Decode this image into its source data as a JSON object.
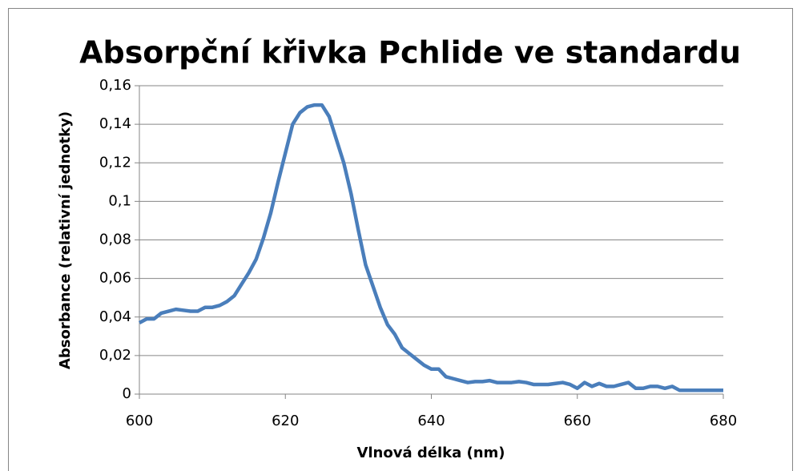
{
  "chart_data": {
    "type": "line",
    "title": "Absorpční křivka Pchlide ve standardu",
    "xlabel": "Vlnová délka (nm)",
    "ylabel": "Absorbance (relativní jednotky)",
    "x": [
      600,
      601,
      602,
      603,
      604,
      605,
      606,
      607,
      608,
      609,
      610,
      611,
      612,
      613,
      614,
      615,
      616,
      617,
      618,
      619,
      620,
      621,
      622,
      623,
      624,
      625,
      626,
      627,
      628,
      629,
      630,
      631,
      632,
      633,
      634,
      635,
      636,
      637,
      638,
      639,
      640,
      641,
      642,
      643,
      644,
      645,
      646,
      647,
      648,
      649,
      650,
      651,
      652,
      653,
      654,
      655,
      656,
      657,
      658,
      659,
      660,
      661,
      662,
      663,
      664,
      665,
      666,
      667,
      668,
      669,
      670,
      671,
      672,
      673,
      674,
      675,
      676,
      677,
      678,
      679,
      680
    ],
    "series": [
      {
        "name": "Pchlide",
        "color": "#4a7ebb",
        "values": [
          0.037,
          0.039,
          0.039,
          0.042,
          0.043,
          0.044,
          0.0435,
          0.043,
          0.043,
          0.045,
          0.045,
          0.046,
          0.048,
          0.051,
          0.057,
          0.063,
          0.07,
          0.081,
          0.094,
          0.11,
          0.125,
          0.14,
          0.146,
          0.149,
          0.15,
          0.15,
          0.144,
          0.132,
          0.12,
          0.104,
          0.085,
          0.067,
          0.056,
          0.045,
          0.036,
          0.031,
          0.024,
          0.021,
          0.018,
          0.015,
          0.013,
          0.013,
          0.009,
          0.008,
          0.007,
          0.006,
          0.0065,
          0.0065,
          0.007,
          0.006,
          0.006,
          0.006,
          0.0065,
          0.006,
          0.005,
          0.005,
          0.005,
          0.0055,
          0.006,
          0.005,
          0.003,
          0.006,
          0.004,
          0.0055,
          0.004,
          0.004,
          0.005,
          0.006,
          0.003,
          0.003,
          0.004,
          0.004,
          0.003,
          0.004,
          0.002,
          0.002,
          0.002,
          0.002,
          0.002,
          0.002,
          0.002
        ]
      }
    ],
    "xlim": [
      600,
      680
    ],
    "xticks": [
      600,
      620,
      640,
      660,
      680
    ],
    "ylim": [
      0,
      0.16
    ],
    "yticks": [
      0,
      {
        "value": 0.02,
        "label": "0,02"
      },
      {
        "value": 0.04,
        "label": "0,04"
      },
      {
        "value": 0.06,
        "label": "0,06"
      },
      {
        "value": 0.08,
        "label": "0,08"
      },
      {
        "value": 0.1,
        "label": "0,1"
      },
      {
        "value": 0.12,
        "label": "0,12"
      },
      {
        "value": 0.14,
        "label": "0,14"
      },
      {
        "value": 0.16,
        "label": "0,16"
      }
    ],
    "grid": true
  }
}
